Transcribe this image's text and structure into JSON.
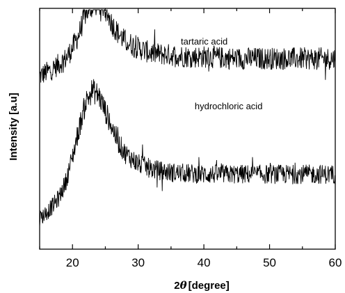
{
  "chart_data": {
    "type": "line",
    "xlabel_prefix": "2",
    "xlabel_symbol": "θ",
    "xlabel_suffix": "[degree]",
    "ylabel": "Intensity [a.u]",
    "xlim": [
      15,
      60
    ],
    "xticks": [
      20,
      30,
      40,
      50,
      60
    ],
    "y_axis_ticks_labeled": false,
    "grid": false,
    "series": [
      {
        "name": "tartaric acid",
        "color": "#000000",
        "x": [
          15,
          17,
          19,
          20,
          21,
          22,
          23,
          24,
          25,
          26,
          27,
          28,
          30,
          32,
          35,
          38,
          40,
          45,
          50,
          55,
          60
        ],
        "y": [
          0.86,
          0.9,
          0.96,
          1.02,
          1.1,
          1.22,
          1.26,
          1.28,
          1.24,
          1.16,
          1.1,
          1.06,
          1.02,
          0.99,
          0.98,
          0.97,
          0.97,
          0.96,
          0.96,
          0.96,
          0.96
        ]
      },
      {
        "name": "hydrochloric acid",
        "color": "#000000",
        "x": [
          15,
          16,
          17,
          18,
          19,
          20,
          21,
          22,
          23,
          24,
          25,
          26,
          27,
          28,
          30,
          32,
          35,
          40,
          45,
          50,
          55,
          60
        ],
        "y": [
          0.05,
          0.08,
          0.12,
          0.17,
          0.26,
          0.4,
          0.56,
          0.71,
          0.78,
          0.75,
          0.66,
          0.57,
          0.48,
          0.42,
          0.36,
          0.33,
          0.31,
          0.3,
          0.3,
          0.3,
          0.3,
          0.3
        ]
      }
    ]
  }
}
